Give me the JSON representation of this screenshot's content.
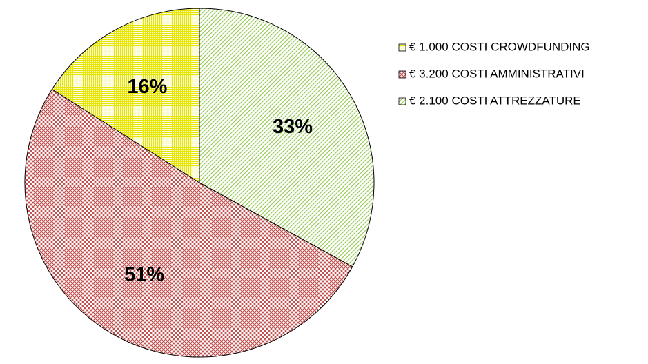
{
  "chart_data": {
    "type": "pie",
    "categories": [
      "€ 1.000 COSTI CROWDFUNDING",
      "€ 3.200 COSTI AMMINISTRATIVI",
      "€ 2.100 COSTI ATTREZZATURE"
    ],
    "values": [
      16,
      51,
      33
    ],
    "value_labels": [
      "16%",
      "51%",
      "33%"
    ],
    "colors": [
      "#e6e600",
      "#c0504d",
      "#9bcb5c"
    ],
    "hatch": [
      "grid",
      "crosshatch",
      "diagonal"
    ],
    "legend": "right"
  }
}
